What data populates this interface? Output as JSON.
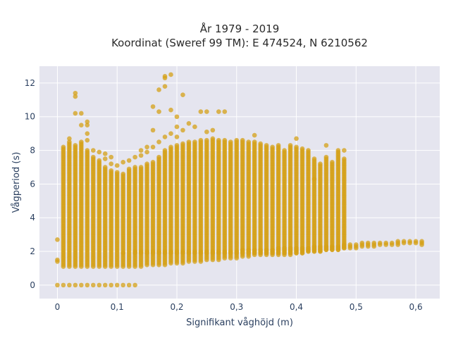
{
  "chart_data": {
    "type": "scatter",
    "title_line1": "År 1979 - 2019",
    "title_line2": "Koordinat (Sweref 99 TM): E 474524, N 6210562",
    "xlabel": "Signifikant våghöjd (m)",
    "ylabel": "Vågperiod (s)",
    "xlim": [
      -0.03,
      0.64
    ],
    "ylim": [
      -0.8,
      13.0
    ],
    "xticks": [
      0,
      0.1,
      0.2,
      0.3,
      0.4,
      0.5,
      0.6
    ],
    "xtick_labels": [
      "0",
      "0,1",
      "0,2",
      "0,3",
      "0,4",
      "0,5",
      "0,6"
    ],
    "yticks": [
      0,
      2,
      4,
      6,
      8,
      10,
      12
    ],
    "ytick_labels": [
      "0",
      "2",
      "4",
      "6",
      "8",
      "10",
      "12"
    ],
    "marker_color": "#d4a017",
    "plot_background": "#e5e5ef",
    "grid": true,
    "columns": [
      {
        "x": 0.0,
        "ranges": [
          [
            0.0,
            0.0
          ],
          [
            1.4,
            1.5
          ]
        ],
        "points": [
          2.7
        ]
      },
      {
        "x": 0.01,
        "ranges": [
          [
            0.0,
            0.0
          ]
        ],
        "points": []
      },
      {
        "x": 0.01,
        "ranges": [
          [
            1.1,
            8.2
          ]
        ],
        "points": []
      },
      {
        "x": 0.02,
        "ranges": [
          [
            0.0,
            0.0
          ],
          [
            1.1,
            8.5
          ]
        ],
        "points": [
          8.7
        ]
      },
      {
        "x": 0.03,
        "ranges": [
          [
            0.0,
            0.0
          ],
          [
            1.1,
            8.3
          ]
        ],
        "points": [
          10.2,
          11.2,
          11.4
        ]
      },
      {
        "x": 0.04,
        "ranges": [
          [
            0.0,
            0.0
          ],
          [
            1.1,
            8.5
          ]
        ],
        "points": [
          9.5,
          10.2
        ]
      },
      {
        "x": 0.05,
        "ranges": [
          [
            0.0,
            0.0
          ],
          [
            1.1,
            8.0
          ]
        ],
        "points": [
          8.6,
          9.0,
          9.5,
          9.7
        ]
      },
      {
        "x": 0.06,
        "ranges": [
          [
            0.0,
            0.0
          ],
          [
            1.1,
            7.6
          ]
        ],
        "points": [
          8.0
        ]
      },
      {
        "x": 0.07,
        "ranges": [
          [
            0.0,
            0.0
          ],
          [
            1.1,
            7.4
          ]
        ],
        "points": [
          7.9
        ]
      },
      {
        "x": 0.08,
        "ranges": [
          [
            0.0,
            0.0
          ],
          [
            1.1,
            7.0
          ]
        ],
        "points": [
          7.5,
          7.8
        ]
      },
      {
        "x": 0.09,
        "ranges": [
          [
            0.0,
            0.0
          ],
          [
            1.1,
            6.8
          ]
        ],
        "points": [
          7.2,
          7.6
        ]
      },
      {
        "x": 0.1,
        "ranges": [
          [
            0.0,
            0.0
          ],
          [
            1.1,
            6.7
          ]
        ],
        "points": [
          7.1
        ]
      },
      {
        "x": 0.11,
        "ranges": [
          [
            0.0,
            0.0
          ],
          [
            1.1,
            6.6
          ]
        ],
        "points": [
          7.3,
          1.9
        ]
      },
      {
        "x": 0.12,
        "ranges": [
          [
            0.0,
            0.0
          ],
          [
            1.1,
            6.9
          ]
        ],
        "points": [
          7.4
        ]
      },
      {
        "x": 0.13,
        "ranges": [
          [
            0.0,
            0.0
          ],
          [
            1.1,
            7.0
          ],
          [
            1.9,
            2.0
          ]
        ],
        "points": [
          7.6
        ]
      },
      {
        "x": 0.14,
        "ranges": [
          [
            1.1,
            7.0
          ],
          [
            1.9,
            2.0
          ]
        ],
        "points": [
          7.7,
          8.0
        ]
      },
      {
        "x": 0.15,
        "ranges": [
          [
            1.2,
            7.2
          ],
          [
            1.9,
            2.0
          ]
        ],
        "points": [
          7.9,
          8.2
        ]
      },
      {
        "x": 0.16,
        "ranges": [
          [
            1.2,
            7.3
          ],
          [
            1.9,
            2.0
          ]
        ],
        "points": [
          8.2,
          9.2,
          10.6
        ]
      },
      {
        "x": 0.17,
        "ranges": [
          [
            1.2,
            7.6
          ],
          [
            1.9,
            2.0
          ]
        ],
        "points": [
          8.5,
          10.3,
          11.6
        ]
      },
      {
        "x": 0.18,
        "ranges": [
          [
            1.2,
            8.0
          ],
          [
            1.9,
            2.0
          ]
        ],
        "points": [
          8.8,
          11.8,
          12.3,
          12.4
        ]
      },
      {
        "x": 0.19,
        "ranges": [
          [
            1.3,
            8.2
          ],
          [
            1.9,
            2.0
          ]
        ],
        "points": [
          9.0,
          10.4,
          12.5
        ]
      },
      {
        "x": 0.2,
        "ranges": [
          [
            1.3,
            8.3
          ],
          [
            1.9,
            2.0
          ]
        ],
        "points": [
          8.8,
          9.4,
          10.0
        ]
      },
      {
        "x": 0.21,
        "ranges": [
          [
            1.3,
            8.4
          ],
          [
            1.9,
            2.0
          ]
        ],
        "points": [
          9.2,
          11.3
        ]
      },
      {
        "x": 0.22,
        "ranges": [
          [
            1.4,
            8.5
          ],
          [
            1.9,
            2.0
          ]
        ],
        "points": [
          9.6
        ]
      },
      {
        "x": 0.23,
        "ranges": [
          [
            1.4,
            8.5
          ],
          [
            1.9,
            2.0
          ]
        ],
        "points": [
          9.4
        ]
      },
      {
        "x": 0.24,
        "ranges": [
          [
            1.4,
            8.6
          ],
          [
            1.9,
            2.0
          ]
        ],
        "points": [
          10.3
        ]
      },
      {
        "x": 0.25,
        "ranges": [
          [
            1.5,
            8.6
          ],
          [
            1.9,
            2.0
          ]
        ],
        "points": [
          10.3,
          9.1
        ]
      },
      {
        "x": 0.26,
        "ranges": [
          [
            1.5,
            8.7
          ],
          [
            1.9,
            2.0
          ]
        ],
        "points": [
          9.2
        ]
      },
      {
        "x": 0.27,
        "ranges": [
          [
            1.5,
            8.6
          ],
          [
            1.9,
            2.0
          ]
        ],
        "points": [
          10.3
        ]
      },
      {
        "x": 0.28,
        "ranges": [
          [
            1.6,
            8.6
          ],
          [
            1.9,
            2.0
          ]
        ],
        "points": [
          10.3
        ]
      },
      {
        "x": 0.29,
        "ranges": [
          [
            1.6,
            8.5
          ],
          [
            1.9,
            2.0
          ]
        ],
        "points": []
      },
      {
        "x": 0.3,
        "ranges": [
          [
            1.6,
            8.6
          ],
          [
            1.9,
            2.0
          ]
        ],
        "points": []
      },
      {
        "x": 0.31,
        "ranges": [
          [
            1.7,
            8.6
          ],
          [
            1.9,
            2.1
          ]
        ],
        "points": []
      },
      {
        "x": 0.32,
        "ranges": [
          [
            1.7,
            8.5
          ],
          [
            1.9,
            2.1
          ]
        ],
        "points": []
      },
      {
        "x": 0.33,
        "ranges": [
          [
            1.8,
            8.5
          ],
          [
            1.9,
            2.1
          ]
        ],
        "points": [
          8.9
        ]
      },
      {
        "x": 0.34,
        "ranges": [
          [
            1.8,
            8.4
          ],
          [
            1.9,
            2.1
          ]
        ],
        "points": []
      },
      {
        "x": 0.35,
        "ranges": [
          [
            1.8,
            8.3
          ],
          [
            1.9,
            2.1
          ]
        ],
        "points": []
      },
      {
        "x": 0.36,
        "ranges": [
          [
            1.8,
            8.2
          ],
          [
            1.9,
            2.1
          ]
        ],
        "points": []
      },
      {
        "x": 0.37,
        "ranges": [
          [
            1.8,
            8.3
          ],
          [
            1.9,
            2.2
          ]
        ],
        "points": []
      },
      {
        "x": 0.38,
        "ranges": [
          [
            1.8,
            8.0
          ],
          [
            1.9,
            2.2
          ]
        ],
        "points": []
      },
      {
        "x": 0.39,
        "ranges": [
          [
            1.8,
            8.3
          ],
          [
            1.9,
            2.2
          ]
        ],
        "points": []
      },
      {
        "x": 0.4,
        "ranges": [
          [
            1.9,
            8.2
          ],
          [
            1.9,
            2.2
          ]
        ],
        "points": [
          8.7
        ]
      },
      {
        "x": 0.41,
        "ranges": [
          [
            1.9,
            8.1
          ],
          [
            1.9,
            2.2
          ]
        ],
        "points": []
      },
      {
        "x": 0.42,
        "ranges": [
          [
            2.0,
            8.0
          ],
          [
            2.0,
            2.2
          ]
        ],
        "points": []
      },
      {
        "x": 0.43,
        "ranges": [
          [
            2.0,
            7.5
          ],
          [
            2.0,
            2.3
          ]
        ],
        "points": [
          6.3
        ]
      },
      {
        "x": 0.44,
        "ranges": [
          [
            2.0,
            7.2
          ],
          [
            2.0,
            2.3
          ]
        ],
        "points": []
      },
      {
        "x": 0.45,
        "ranges": [
          [
            2.1,
            7.6
          ],
          [
            2.1,
            2.3
          ]
        ],
        "points": [
          8.3
        ]
      },
      {
        "x": 0.46,
        "ranges": [
          [
            2.1,
            7.3
          ],
          [
            2.1,
            2.3
          ]
        ],
        "points": []
      },
      {
        "x": 0.47,
        "ranges": [
          [
            2.1,
            8.0
          ],
          [
            2.1,
            2.3
          ]
        ],
        "points": []
      },
      {
        "x": 0.48,
        "ranges": [
          [
            2.2,
            7.5
          ],
          [
            2.2,
            2.4
          ]
        ],
        "points": [
          8.0
        ]
      },
      {
        "x": 0.49,
        "ranges": [
          [
            2.2,
            2.4
          ]
        ],
        "points": []
      },
      {
        "x": 0.5,
        "ranges": [
          [
            2.2,
            2.4
          ]
        ],
        "points": []
      },
      {
        "x": 0.51,
        "ranges": [
          [
            2.3,
            2.5
          ]
        ],
        "points": []
      },
      {
        "x": 0.52,
        "ranges": [
          [
            2.3,
            2.5
          ]
        ],
        "points": []
      },
      {
        "x": 0.53,
        "ranges": [
          [
            2.3,
            2.5
          ]
        ],
        "points": []
      },
      {
        "x": 0.54,
        "ranges": [
          [
            2.4,
            2.5
          ]
        ],
        "points": []
      },
      {
        "x": 0.55,
        "ranges": [
          [
            2.4,
            2.5
          ]
        ],
        "points": []
      },
      {
        "x": 0.56,
        "ranges": [
          [
            2.4,
            2.5
          ]
        ],
        "points": []
      },
      {
        "x": 0.57,
        "ranges": [
          [
            2.4,
            2.6
          ]
        ],
        "points": []
      },
      {
        "x": 0.58,
        "ranges": [
          [
            2.5,
            2.6
          ]
        ],
        "points": []
      },
      {
        "x": 0.59,
        "ranges": [
          [
            2.5,
            2.6
          ]
        ],
        "points": []
      },
      {
        "x": 0.6,
        "ranges": [
          [
            2.5,
            2.6
          ]
        ],
        "points": []
      },
      {
        "x": 0.61,
        "ranges": [
          [
            2.4,
            2.6
          ]
        ],
        "points": []
      }
    ]
  }
}
